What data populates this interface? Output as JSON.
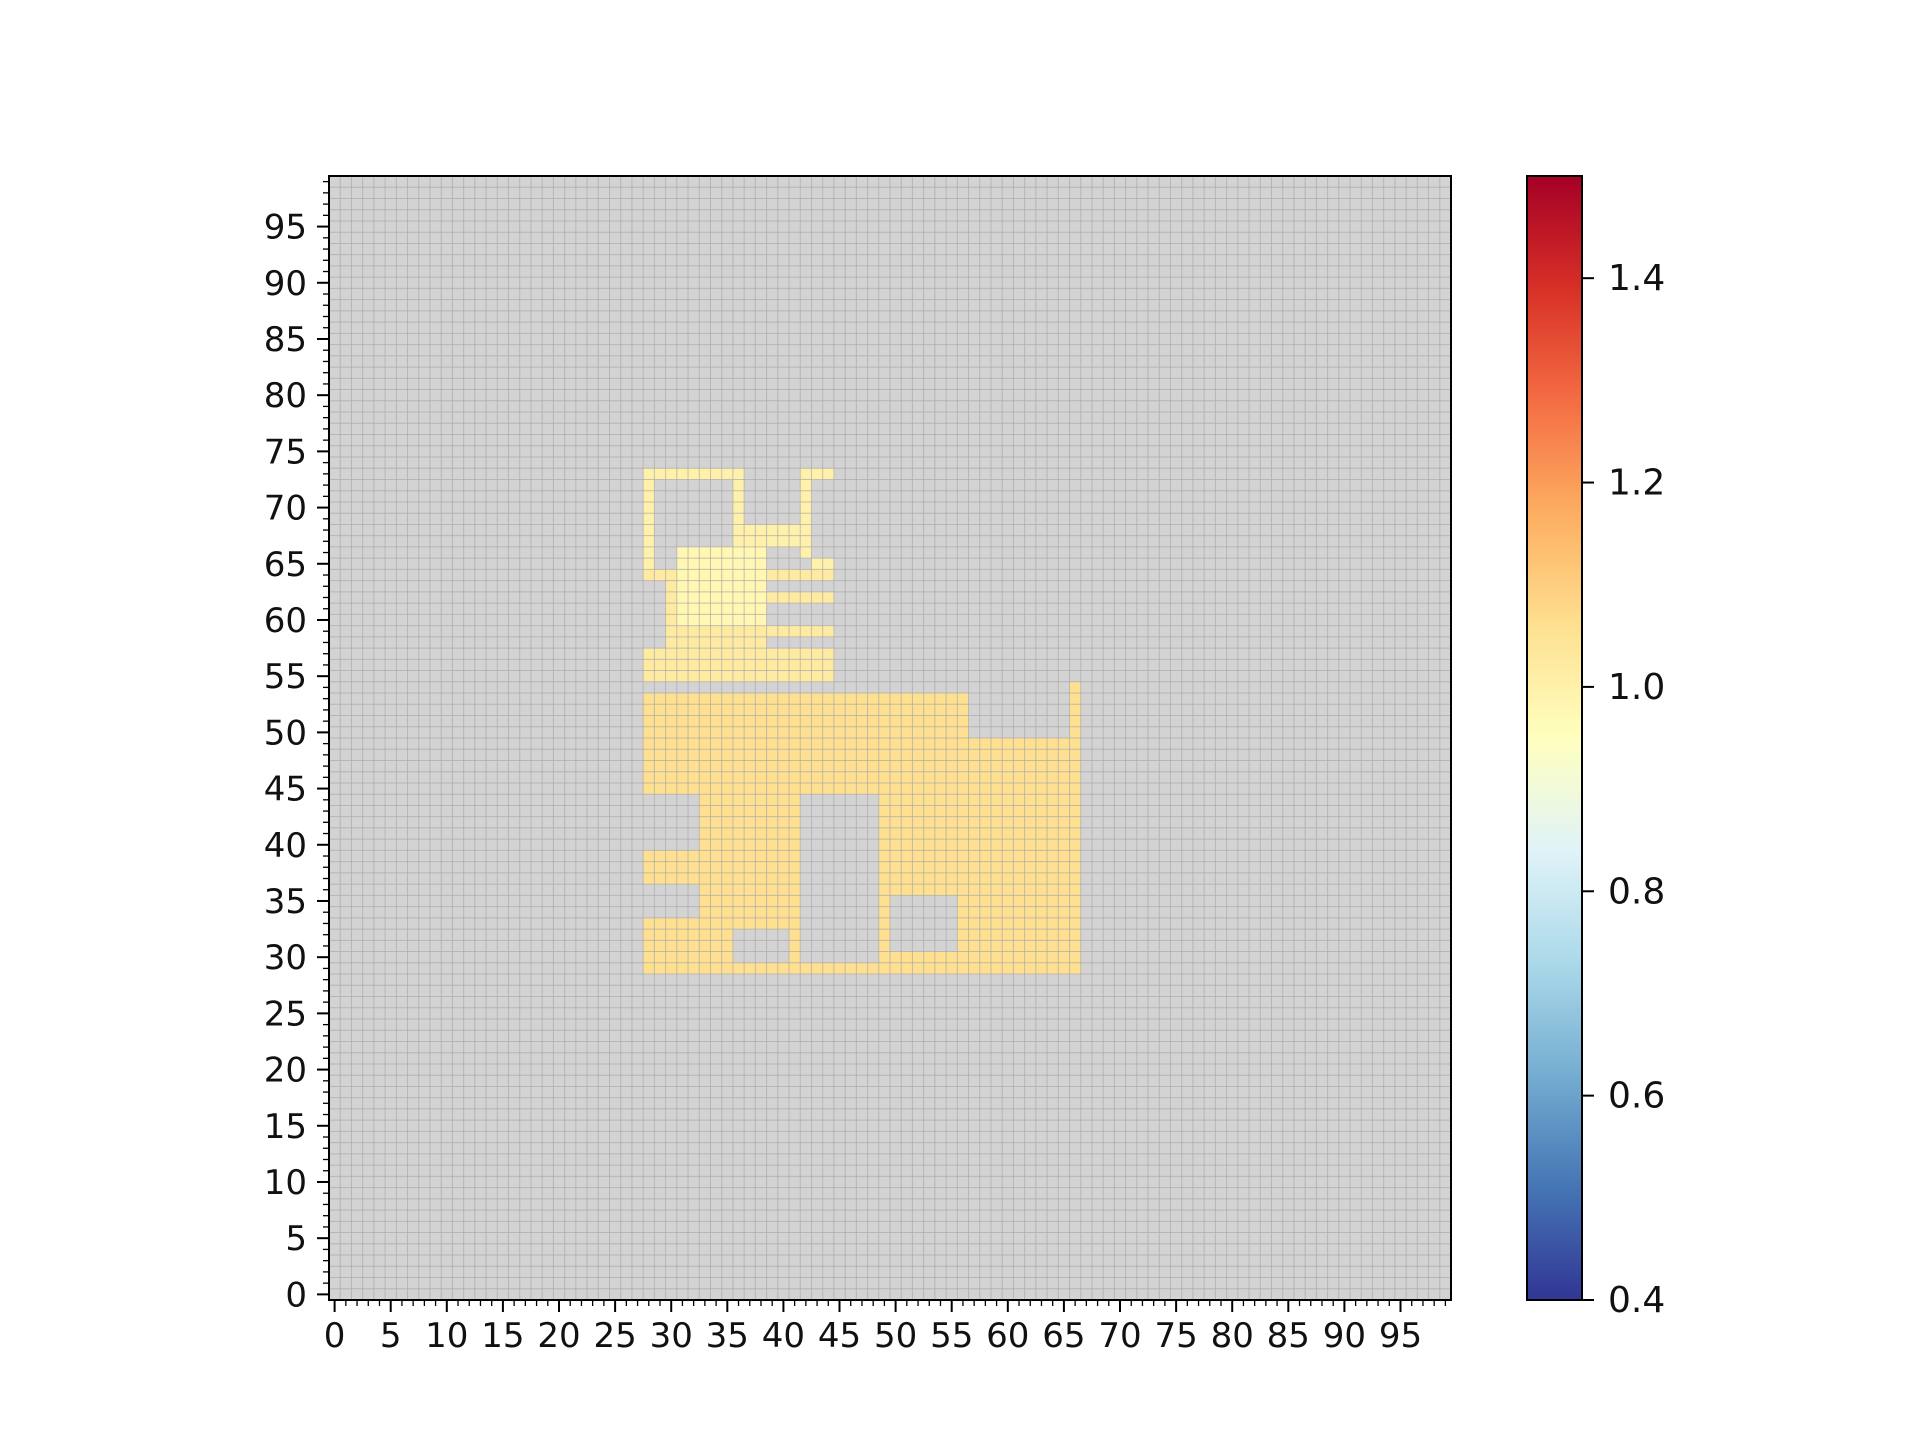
{
  "chart_data": {
    "type": "heatmap",
    "title": "",
    "xlabel": "",
    "ylabel": "",
    "grid": "on",
    "grid_size": [
      100,
      100
    ],
    "x_range": [
      0,
      100
    ],
    "y_range": [
      0,
      100
    ],
    "x_ticks": [
      "0",
      "5",
      "10",
      "15",
      "20",
      "25",
      "30",
      "35",
      "40",
      "45",
      "50",
      "55",
      "60",
      "65",
      "70",
      "75",
      "80",
      "85",
      "90",
      "95"
    ],
    "y_ticks": [
      "0",
      "5",
      "10",
      "15",
      "20",
      "25",
      "30",
      "35",
      "40",
      "45",
      "50",
      "55",
      "60",
      "65",
      "70",
      "75",
      "80",
      "85",
      "90",
      "95"
    ],
    "background_value": null,
    "colorbar": {
      "min": 0.4,
      "max": 1.5,
      "ticks": [
        "0.4",
        "0.6",
        "0.8",
        "1.0",
        "1.2",
        "1.4"
      ],
      "colormap": "RdYlBu_r",
      "stops": [
        "#313695",
        "#4575b4",
        "#74add1",
        "#abd9e9",
        "#e0f3f8",
        "#ffffbf",
        "#fee090",
        "#fdae61",
        "#f46d43",
        "#d73027",
        "#a50026"
      ]
    },
    "regions": [
      {
        "name": "lower-block",
        "x": [
          28,
          67
        ],
        "y": [
          29,
          54
        ],
        "value": 1.06
      },
      {
        "name": "hole-a",
        "x": [
          28,
          33
        ],
        "y": [
          34,
          37
        ],
        "value": null
      },
      {
        "name": "hole-b",
        "x": [
          28,
          33
        ],
        "y": [
          40,
          45
        ],
        "value": null
      },
      {
        "name": "hole-c",
        "x": [
          36,
          41
        ],
        "y": [
          30,
          33
        ],
        "value": null
      },
      {
        "name": "hole-d",
        "x": [
          42,
          49
        ],
        "y": [
          30,
          45
        ],
        "value": null
      },
      {
        "name": "hole-e",
        "x": [
          50,
          56
        ],
        "y": [
          31,
          36
        ],
        "value": null
      },
      {
        "name": "hole-f",
        "x": [
          57,
          66
        ],
        "y": [
          50,
          54
        ],
        "value": null
      },
      {
        "name": "strip-right",
        "x": [
          66,
          67
        ],
        "y": [
          50,
          55
        ],
        "value": 1.06
      },
      {
        "name": "upper-block",
        "x": [
          28,
          45
        ],
        "y": [
          55,
          65
        ],
        "value": 1.02
      },
      {
        "name": "upper-hole-a",
        "x": [
          28,
          30
        ],
        "y": [
          58,
          64
        ],
        "value": null
      },
      {
        "name": "upper-hole-b",
        "x": [
          39,
          45
        ],
        "y": [
          58,
          59
        ],
        "value": null
      },
      {
        "name": "upper-hole-c",
        "x": [
          39,
          45
        ],
        "y": [
          60,
          62
        ],
        "value": null
      },
      {
        "name": "upper-hole-d",
        "x": [
          39,
          45
        ],
        "y": [
          63,
          64
        ],
        "value": null
      },
      {
        "name": "upper-light",
        "x": [
          31,
          39
        ],
        "y": [
          60,
          67
        ],
        "value": 0.98
      },
      {
        "name": "frame-top",
        "x": [
          28,
          36
        ],
        "y": [
          73,
          74
        ],
        "value": 1.0
      },
      {
        "name": "frame-left",
        "x": [
          28,
          29
        ],
        "y": [
          65,
          74
        ],
        "value": 1.0
      },
      {
        "name": "frame-right",
        "x": [
          36,
          37
        ],
        "y": [
          67,
          74
        ],
        "value": 1.0
      },
      {
        "name": "step-bar",
        "x": [
          37,
          42
        ],
        "y": [
          67,
          69
        ],
        "value": 1.0
      },
      {
        "name": "tick-bar",
        "x": [
          42,
          43
        ],
        "y": [
          66,
          74
        ],
        "value": 1.0
      },
      {
        "name": "tick-top",
        "x": [
          42,
          45
        ],
        "y": [
          73,
          74
        ],
        "value": 1.0
      },
      {
        "name": "ledge",
        "x": [
          43,
          45
        ],
        "y": [
          65,
          66
        ],
        "value": 1.0
      }
    ]
  }
}
